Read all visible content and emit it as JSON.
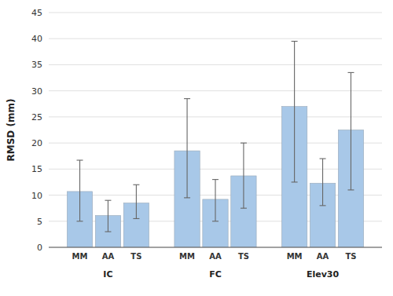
{
  "chart_data": {
    "type": "bar",
    "ylabel": "RMSD (mm)",
    "categories": [
      "IC",
      "FC",
      "Elev30"
    ],
    "series": [
      {
        "name": "MM",
        "values": [
          10.7,
          18.5,
          27.0
        ],
        "errors_low": [
          5.7,
          9.0,
          14.5
        ],
        "errors_high": [
          6.0,
          10.0,
          12.5
        ]
      },
      {
        "name": "AA",
        "values": [
          6.1,
          9.2,
          12.3
        ],
        "errors_low": [
          3.1,
          4.2,
          4.3
        ],
        "errors_high": [
          2.9,
          3.8,
          4.7
        ]
      },
      {
        "name": "TS",
        "values": [
          8.5,
          13.7,
          22.5
        ],
        "errors_low": [
          3.0,
          6.2,
          11.5
        ],
        "errors_high": [
          3.5,
          6.3,
          11.0
        ]
      }
    ],
    "color": "#a8c8e8",
    "ylim": [
      0,
      45
    ],
    "yticks": [
      0,
      5,
      10,
      15,
      20,
      25,
      30,
      35,
      40,
      45
    ],
    "grid": true
  }
}
